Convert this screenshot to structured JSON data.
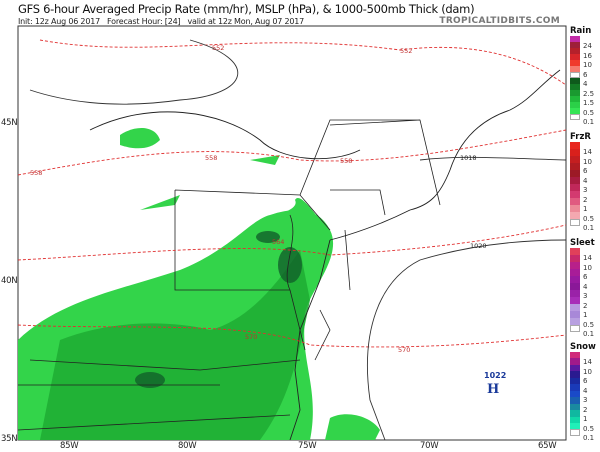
{
  "header": {
    "title": "GFS 6-hour Averaged Precip Rate (mm/hr), MSLP (hPa), & 1000-500mb Thick (dam)",
    "init": "Init: 12z Aug 06 2017",
    "forecast_hour": "Forecast Hour: [24]",
    "valid": "valid at 12z Mon, Aug 07 2017",
    "brand": "TROPICALTIDBITS.COM"
  },
  "axes": {
    "lon": [
      "85W",
      "80W",
      "75W",
      "70W",
      "65W"
    ],
    "lat": [
      "45N",
      "40N",
      "35N"
    ]
  },
  "contours": {
    "thickness": [
      "552",
      "552",
      "558",
      "558",
      "558",
      "564",
      "570",
      "570"
    ],
    "pressure": [
      "1018",
      "1020"
    ],
    "high": {
      "value": "1022",
      "symbol": "H"
    }
  },
  "legend": [
    {
      "title": "Rain",
      "labels": [
        "24",
        "16",
        "10",
        "6",
        "4",
        "2.5",
        "1.5",
        "0.5",
        "0.1"
      ],
      "colors": [
        "#c22ca8",
        "#9e1f3a",
        "#b5202b",
        "#d8262a",
        "#f03a2c",
        "#f57a6e",
        "#ffffff",
        "#0e5a1c",
        "#137a25",
        "#1a9a30",
        "#20b83a",
        "#2bd048",
        "#35e455",
        "#ffffff"
      ]
    },
    {
      "title": "FrzR",
      "labels": [
        "14",
        "10",
        "6",
        "4",
        "3",
        "2",
        "1",
        "0.5",
        "0.1"
      ],
      "colors": [
        "#e8261e",
        "#d9201c",
        "#c41e20",
        "#b01c22",
        "#9c1a26",
        "#a81c40",
        "#c0285a",
        "#d33a70",
        "#e05a80",
        "#ec8a98",
        "#f4a8b0",
        "#ffffff"
      ]
    },
    {
      "title": "Sleet",
      "labels": [
        "14",
        "10",
        "6",
        "4",
        "3",
        "2",
        "1",
        "0.5",
        "0.1"
      ],
      "colors": [
        "#e0405a",
        "#c82a6a",
        "#b8208a",
        "#a81c98",
        "#981aa0",
        "#8a1898",
        "#9a22a8",
        "#a82eb8",
        "#b89ae0",
        "#a888d8",
        "#b8a0e0",
        "#ffffff"
      ]
    },
    {
      "title": "Snow",
      "labels": [
        "14",
        "10",
        "6",
        "4",
        "3",
        "2",
        "1",
        "0.5",
        "0.1"
      ],
      "colors": [
        "#d02a7a",
        "#a01a8a",
        "#5a1aa0",
        "#2a1a90",
        "#1a2aa0",
        "#1a3ab8",
        "#1a4ac8",
        "#1a60b0",
        "#1a8aa0",
        "#10b8a0",
        "#10d8a8",
        "#20f0b8",
        "#ffffff"
      ]
    }
  ],
  "colors": {
    "precip_light": "#33d44a",
    "precip_mid": "#1fae34",
    "precip_dark": "#11602a",
    "thickness": "#e03030",
    "isobar": "#333333"
  }
}
